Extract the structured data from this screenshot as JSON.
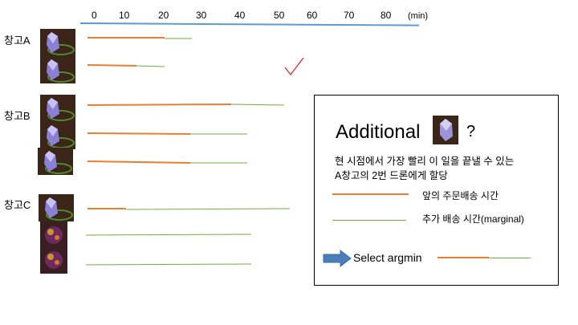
{
  "axis": {
    "ticks": [
      "0",
      "10",
      "20",
      "30",
      "40",
      "60",
      "70",
      "80",
      "50"
    ],
    "unit": "(min)",
    "line_color": "#5b9bd5"
  },
  "warehouses": [
    {
      "label": "창고A",
      "drones": 2
    },
    {
      "label": "창고B",
      "drones": 3
    },
    {
      "label": "창고C",
      "drones": 3
    }
  ],
  "colors": {
    "prior_delivery": "#ed7d31",
    "marginal": "#70ad47",
    "checkmark": "#e0202b",
    "arrow": "#4a7ebb"
  },
  "legend": {
    "title": "Additional",
    "question_mark": "?",
    "desc_line1": "현 시점에서 가장 빨리 이 일을 끝낼 수 있는",
    "desc_line2": "A창고의 2번 드론에게 할당",
    "prior_label": "앞의 주문배송 시간",
    "marginal_label": "추가 배송 시간(marginal)",
    "select_label": "Select argmin"
  }
}
